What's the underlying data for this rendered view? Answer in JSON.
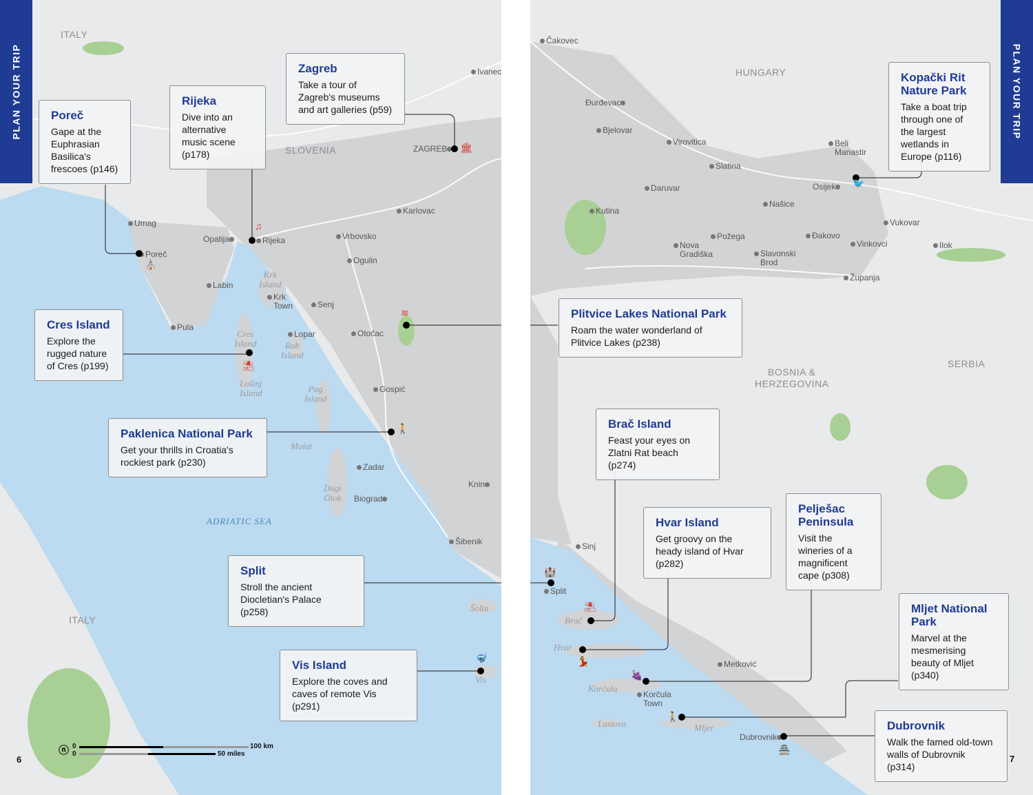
{
  "section_tab": "PLAN YOUR TRIP",
  "page_numbers": {
    "left": "6",
    "right": "7"
  },
  "regions": {
    "left": [
      "ITALY",
      "SLOVENIA",
      "ITALY"
    ],
    "right": [
      "HUNGARY",
      "BOSNIA &\nHERZEGOVINA",
      "SERBIA"
    ]
  },
  "sea_label": "ADRIATIC\nSEA",
  "islands": {
    "left": [
      "Krk\nIsland",
      "Cres\nIsland",
      "Rab\nIsland",
      "Lošinj\nIsland",
      "Pag\nIsland",
      "Molat",
      "Dugi\nOtok",
      "Šolta",
      "Vis"
    ],
    "right": [
      "Brač",
      "Hvar",
      "Korčula",
      "Lastovo",
      "Mljet"
    ]
  },
  "towns": {
    "left": [
      "Ivanec",
      "ZAGREB",
      "Umag",
      "Opatija",
      "Rijeka",
      "Vrbovsko",
      "Karlovac",
      "Poreč",
      "Ogulin",
      "Labin",
      "Krk\nTown",
      "Senj",
      "Pula",
      "Lopar",
      "Otočac",
      "Gospić",
      "Zadar",
      "Biograd",
      "Knin",
      "Šibenik"
    ],
    "right": [
      "Čakovec",
      "Đurđevac",
      "Bjelovar",
      "Virovitica",
      "Beli\nManastir",
      "Slatina",
      "Daruvar",
      "Osijek",
      "Kutina",
      "Našice",
      "Vukovar",
      "Požega",
      "Đakovo",
      "Vinkovci",
      "Ilok",
      "Nova\nGradiška",
      "Slavonski\nBrod",
      "Županja",
      "Sinj",
      "Split",
      "Metković",
      "Korčula\nTown",
      "Dubrovnik"
    ]
  },
  "callouts": [
    {
      "title": "Poreč",
      "text": "Gape at the Euphrasian Basilica's frescoes (p146)",
      "icon": "church-icon"
    },
    {
      "title": "Rijeka",
      "text": "Dive into an alternative music scene (p178)",
      "icon": "music-icon"
    },
    {
      "title": "Zagreb",
      "text": "Take a tour of Zagreb's museums and art galleries (p59)",
      "icon": "museum-icon"
    },
    {
      "title": "Cres Island",
      "text": "Explore the rugged nature of Cres (p199)",
      "icon": "beach-icon"
    },
    {
      "title": "Paklenica National Park",
      "text": "Get your thrills in Croatia's rockiest park (p230)",
      "icon": "hiking-icon"
    },
    {
      "title": "Split",
      "text": "Stroll the ancient Diocletian's Palace (p258)",
      "icon": "palace-icon"
    },
    {
      "title": "Vis Island",
      "text": "Explore the coves and caves of remote Vis (p291)",
      "icon": "diving-icon"
    },
    {
      "title": "Kopački Rit Nature Park",
      "text": "Take a boat trip through one of the largest wetlands in Europe (p116)",
      "icon": "bird-icon"
    },
    {
      "title": "Plitvice Lakes National Park",
      "text": "Roam the water wonderland of Plitvice Lakes (p238)",
      "icon": "waterfall-icon"
    },
    {
      "title": "Brač Island",
      "text": "Feast your eyes on Zlatni Rat beach (p274)",
      "icon": "beach-icon"
    },
    {
      "title": "Hvar Island",
      "text": "Get groovy on the heady island of Hvar (p282)",
      "icon": "dancing-icon"
    },
    {
      "title": "Pelješac Peninsula",
      "text": "Visit the wineries of a magnificent cape (p308)",
      "icon": "grapes-icon"
    },
    {
      "title": "Mljet National Park",
      "text": "Marvel at the mesmerising beauty of Mljet (p340)",
      "icon": "hiking-icon"
    },
    {
      "title": "Dubrovnik",
      "text": "Walk the famed old-town walls of Dubrovnik (p314)",
      "icon": "fortress-icon"
    }
  ],
  "scale": {
    "km": "100 km",
    "miles": "50 miles",
    "zero": "0"
  },
  "colors": {
    "accent": "#1f3b93",
    "land": "#e9eaeb",
    "croatia": "#d2d3d5",
    "sea": "#bcdaf0",
    "park": "#a8cf94",
    "icon": "#d13a2c"
  }
}
